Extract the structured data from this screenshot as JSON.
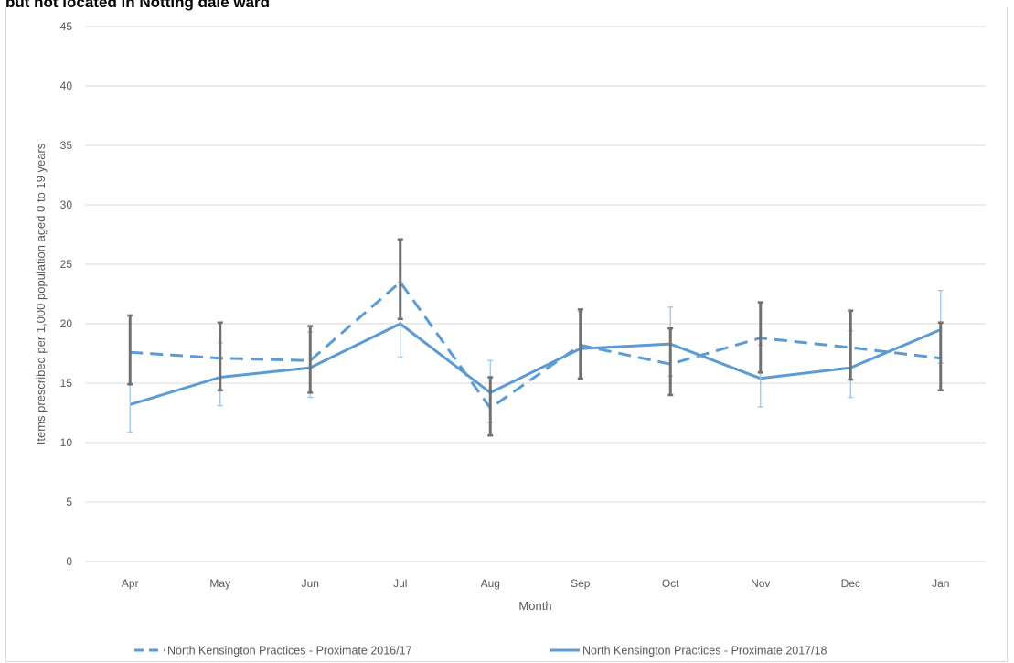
{
  "title": "but not located in Notting dale ward",
  "chart_data": {
    "type": "line",
    "xlabel": "Month",
    "ylabel": "Items prescribed per 1,000 population aged 0 to 19 years",
    "ylim": [
      0,
      45
    ],
    "yticks": [
      0,
      5,
      10,
      15,
      20,
      25,
      30,
      35,
      40,
      45
    ],
    "categories": [
      "Apr",
      "May",
      "Jun",
      "Jul",
      "Aug",
      "Sep",
      "Oct",
      "Nov",
      "Dec",
      "Jan"
    ],
    "grid": true,
    "legend_position": "bottom",
    "series": [
      {
        "name": "North Kensington Practices - Proximate 2016/17",
        "style": "dashed",
        "color": "#5b9bd5",
        "values": [
          17.6,
          17.1,
          16.9,
          23.5,
          12.9,
          18.2,
          16.6,
          18.8,
          18.0,
          17.1
        ],
        "error_low": [
          14.9,
          14.4,
          14.2,
          20.4,
          10.6,
          15.4,
          14.0,
          15.9,
          15.3,
          14.4
        ],
        "error_high": [
          20.7,
          20.1,
          19.8,
          27.1,
          15.5,
          21.2,
          19.6,
          21.8,
          21.1,
          20.1
        ],
        "error_color": "#707070"
      },
      {
        "name": "North Kensington Practices - Proximate 2017/18",
        "style": "solid",
        "color": "#5b9bd5",
        "values": [
          13.2,
          15.5,
          16.3,
          20.0,
          14.2,
          17.9,
          18.3,
          15.4,
          16.3,
          19.5
        ],
        "error_low": [
          10.9,
          13.1,
          13.8,
          17.2,
          11.7,
          15.3,
          15.6,
          13.0,
          13.8,
          16.7
        ],
        "error_high": [
          15.0,
          18.4,
          19.3,
          23.5,
          16.9,
          21.0,
          21.4,
          18.2,
          19.4,
          22.8
        ],
        "error_color": "#9dc3e6"
      }
    ]
  }
}
